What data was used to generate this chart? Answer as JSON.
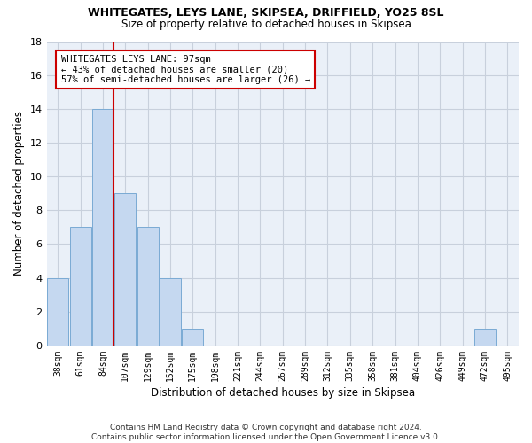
{
  "title1": "WHITEGATES, LEYS LANE, SKIPSEA, DRIFFIELD, YO25 8SL",
  "title2": "Size of property relative to detached houses in Skipsea",
  "xlabel": "Distribution of detached houses by size in Skipsea",
  "ylabel": "Number of detached properties",
  "categories": [
    "38sqm",
    "61sqm",
    "84sqm",
    "107sqm",
    "129sqm",
    "152sqm",
    "175sqm",
    "198sqm",
    "221sqm",
    "244sqm",
    "267sqm",
    "289sqm",
    "312sqm",
    "335sqm",
    "358sqm",
    "381sqm",
    "404sqm",
    "426sqm",
    "449sqm",
    "472sqm",
    "495sqm"
  ],
  "values": [
    4,
    7,
    14,
    9,
    7,
    4,
    1,
    0,
    0,
    0,
    0,
    0,
    0,
    0,
    0,
    0,
    0,
    0,
    0,
    1,
    0
  ],
  "bar_color": "#c5d8f0",
  "bar_edge_color": "#7aaad4",
  "grid_color": "#c8d0dc",
  "bg_color": "#eaf0f8",
  "vline_color": "#cc0000",
  "annotation_title": "WHITEGATES LEYS LANE: 97sqm",
  "annotation_line1": "← 43% of detached houses are smaller (20)",
  "annotation_line2": "57% of semi-detached houses are larger (26) →",
  "annotation_box_color": "#cc0000",
  "footnote1": "Contains HM Land Registry data © Crown copyright and database right 2024.",
  "footnote2": "Contains public sector information licensed under the Open Government Licence v3.0.",
  "ylim": [
    0,
    18
  ],
  "yticks": [
    0,
    2,
    4,
    6,
    8,
    10,
    12,
    14,
    16,
    18
  ]
}
